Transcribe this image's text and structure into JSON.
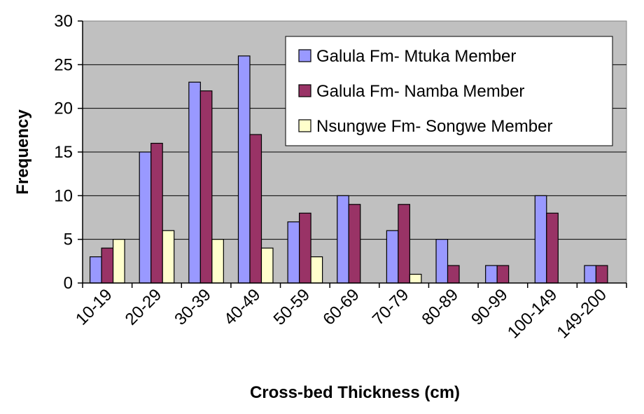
{
  "chart_data": {
    "type": "bar",
    "title": "",
    "xlabel": "Cross-bed Thickness (cm)",
    "ylabel": "Frequency",
    "ylim": [
      0,
      30
    ],
    "yticks": [
      "0",
      "5",
      "10",
      "15",
      "20",
      "25",
      "30"
    ],
    "grid": true,
    "legend": "top-right",
    "categories": [
      "10-19",
      "20-29",
      "30-39",
      "40-49",
      "50-59",
      "60-69",
      "70-79",
      "80-89",
      "90-99",
      "100-149",
      "149-200"
    ],
    "series": [
      {
        "name": "Galula Fm- Mtuka Member",
        "color": "#9999ff",
        "values": [
          3,
          15,
          23,
          26,
          7,
          10,
          6,
          5,
          2,
          10,
          2
        ]
      },
      {
        "name": "Galula Fm- Namba Member",
        "color": "#993366",
        "values": [
          4,
          16,
          22,
          17,
          8,
          9,
          9,
          2,
          2,
          8,
          2
        ]
      },
      {
        "name": "Nsungwe Fm- Songwe Member",
        "color": "#ffffcc",
        "values": [
          5,
          6,
          5,
          4,
          3,
          0,
          1,
          0,
          0,
          0,
          0
        ]
      }
    ],
    "plot_background": "#c0c0c0"
  }
}
